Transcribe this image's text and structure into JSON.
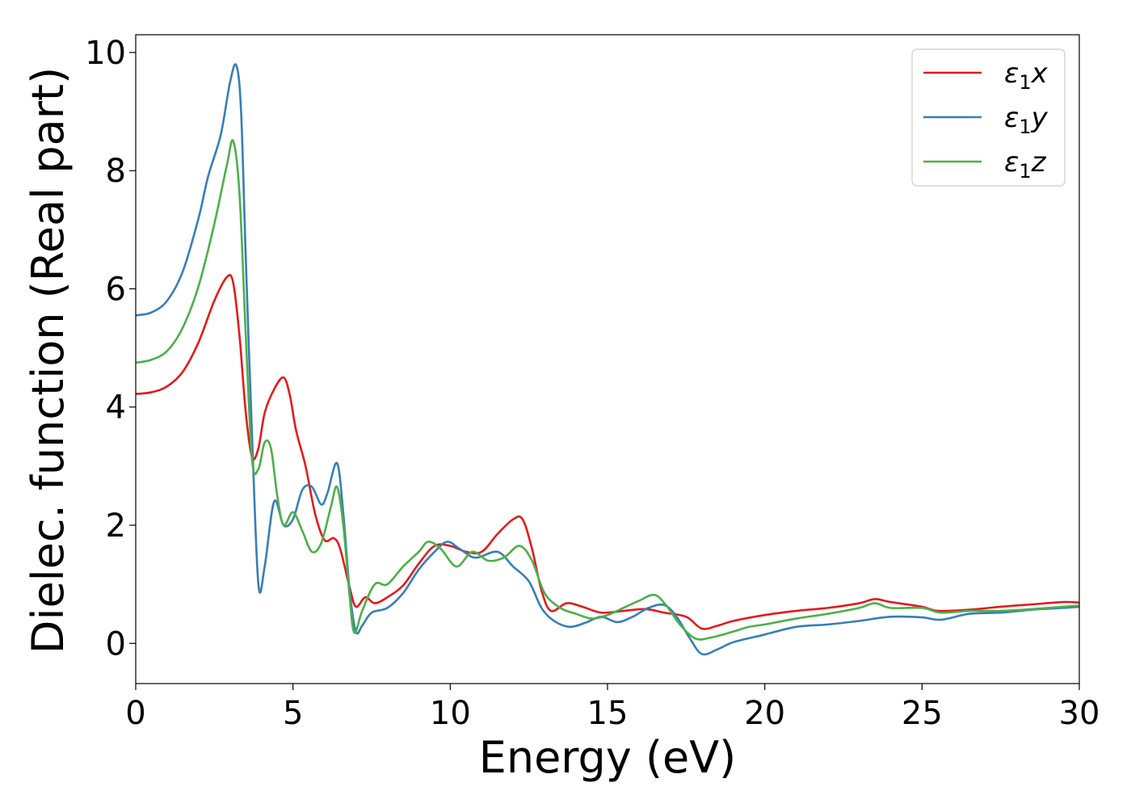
{
  "chart_data": {
    "type": "line",
    "xlabel": "Energy (eV)",
    "ylabel": "Dielec. function (Real part)",
    "xlim": [
      0,
      30
    ],
    "ylim": [
      -0.68,
      10.3
    ],
    "xticks": [
      0,
      5,
      10,
      15,
      20,
      25,
      30
    ],
    "yticks": [
      0,
      2,
      4,
      6,
      8,
      10
    ],
    "grid": false,
    "legend": "top-right",
    "series": [
      {
        "name": "ε1x",
        "label_base": "ε",
        "label_sub": "1",
        "label_var": "x",
        "color": "#e41a1c",
        "points": [
          [
            0,
            4.22
          ],
          [
            0.5,
            4.25
          ],
          [
            1,
            4.35
          ],
          [
            1.5,
            4.6
          ],
          [
            2,
            5.1
          ],
          [
            2.5,
            5.8
          ],
          [
            2.9,
            6.2
          ],
          [
            3.1,
            6.1
          ],
          [
            3.3,
            5.2
          ],
          [
            3.5,
            3.9
          ],
          [
            3.7,
            3.15
          ],
          [
            3.9,
            3.3
          ],
          [
            4.1,
            3.9
          ],
          [
            4.4,
            4.3
          ],
          [
            4.7,
            4.5
          ],
          [
            4.9,
            4.2
          ],
          [
            5.1,
            3.6
          ],
          [
            5.4,
            3.0
          ],
          [
            5.7,
            2.2
          ],
          [
            6.0,
            1.75
          ],
          [
            6.3,
            1.78
          ],
          [
            6.5,
            1.6
          ],
          [
            6.8,
            0.95
          ],
          [
            7.0,
            0.62
          ],
          [
            7.3,
            0.78
          ],
          [
            7.6,
            0.68
          ],
          [
            8.0,
            0.78
          ],
          [
            8.5,
            0.98
          ],
          [
            9.0,
            1.35
          ],
          [
            9.5,
            1.65
          ],
          [
            10.0,
            1.65
          ],
          [
            10.5,
            1.55
          ],
          [
            11.0,
            1.55
          ],
          [
            11.5,
            1.85
          ],
          [
            12.0,
            2.1
          ],
          [
            12.3,
            2.1
          ],
          [
            12.6,
            1.6
          ],
          [
            12.9,
            0.9
          ],
          [
            13.2,
            0.55
          ],
          [
            13.7,
            0.68
          ],
          [
            14.2,
            0.62
          ],
          [
            14.8,
            0.52
          ],
          [
            15.5,
            0.55
          ],
          [
            16.2,
            0.58
          ],
          [
            16.8,
            0.52
          ],
          [
            17.5,
            0.45
          ],
          [
            18.0,
            0.25
          ],
          [
            18.5,
            0.3
          ],
          [
            19.0,
            0.38
          ],
          [
            20.0,
            0.48
          ],
          [
            21.0,
            0.55
          ],
          [
            22.0,
            0.6
          ],
          [
            23.0,
            0.68
          ],
          [
            23.5,
            0.75
          ],
          [
            24.0,
            0.7
          ],
          [
            25.0,
            0.62
          ],
          [
            25.5,
            0.55
          ],
          [
            26.5,
            0.57
          ],
          [
            27.5,
            0.62
          ],
          [
            28.5,
            0.66
          ],
          [
            29.5,
            0.7
          ],
          [
            30,
            0.69
          ]
        ]
      },
      {
        "name": "ε1y",
        "label_base": "ε",
        "label_sub": "1",
        "label_var": "y",
        "color": "#377eb8",
        "points": [
          [
            0,
            5.55
          ],
          [
            0.5,
            5.6
          ],
          [
            1,
            5.8
          ],
          [
            1.5,
            6.3
          ],
          [
            2,
            7.2
          ],
          [
            2.3,
            7.9
          ],
          [
            2.7,
            8.6
          ],
          [
            3.0,
            9.5
          ],
          [
            3.2,
            9.78
          ],
          [
            3.35,
            9.0
          ],
          [
            3.5,
            6.5
          ],
          [
            3.7,
            3.5
          ],
          [
            3.9,
            1.0
          ],
          [
            4.1,
            1.3
          ],
          [
            4.4,
            2.4
          ],
          [
            4.7,
            2.0
          ],
          [
            5.0,
            2.1
          ],
          [
            5.3,
            2.6
          ],
          [
            5.6,
            2.65
          ],
          [
            5.9,
            2.35
          ],
          [
            6.1,
            2.55
          ],
          [
            6.4,
            3.05
          ],
          [
            6.6,
            2.2
          ],
          [
            6.8,
            0.9
          ],
          [
            7.0,
            0.2
          ],
          [
            7.2,
            0.3
          ],
          [
            7.5,
            0.52
          ],
          [
            8.0,
            0.6
          ],
          [
            8.5,
            0.85
          ],
          [
            9.0,
            1.25
          ],
          [
            9.5,
            1.55
          ],
          [
            9.9,
            1.72
          ],
          [
            10.3,
            1.6
          ],
          [
            10.8,
            1.45
          ],
          [
            11.5,
            1.55
          ],
          [
            12.0,
            1.3
          ],
          [
            12.5,
            1.05
          ],
          [
            12.9,
            0.6
          ],
          [
            13.3,
            0.38
          ],
          [
            13.8,
            0.28
          ],
          [
            14.3,
            0.35
          ],
          [
            14.8,
            0.45
          ],
          [
            15.3,
            0.36
          ],
          [
            15.8,
            0.45
          ],
          [
            16.3,
            0.6
          ],
          [
            16.8,
            0.65
          ],
          [
            17.2,
            0.45
          ],
          [
            17.6,
            0.1
          ],
          [
            18.0,
            -0.18
          ],
          [
            18.5,
            -0.1
          ],
          [
            19.0,
            0.02
          ],
          [
            20.0,
            0.15
          ],
          [
            21.0,
            0.28
          ],
          [
            22.0,
            0.32
          ],
          [
            23.0,
            0.38
          ],
          [
            24.0,
            0.45
          ],
          [
            25.0,
            0.44
          ],
          [
            25.6,
            0.4
          ],
          [
            26.5,
            0.5
          ],
          [
            27.5,
            0.52
          ],
          [
            28.5,
            0.57
          ],
          [
            29.5,
            0.6
          ],
          [
            30,
            0.62
          ]
        ]
      },
      {
        "name": "ε1z",
        "label_base": "ε",
        "label_sub": "1",
        "label_var": "z",
        "color": "#4daf4a",
        "points": [
          [
            0,
            4.75
          ],
          [
            0.5,
            4.8
          ],
          [
            1,
            4.95
          ],
          [
            1.5,
            5.35
          ],
          [
            2,
            6.05
          ],
          [
            2.5,
            7.1
          ],
          [
            2.9,
            8.1
          ],
          [
            3.1,
            8.5
          ],
          [
            3.3,
            7.6
          ],
          [
            3.5,
            5.2
          ],
          [
            3.7,
            3.1
          ],
          [
            3.9,
            2.95
          ],
          [
            4.1,
            3.4
          ],
          [
            4.3,
            3.3
          ],
          [
            4.5,
            2.5
          ],
          [
            4.7,
            2.0
          ],
          [
            5.0,
            2.22
          ],
          [
            5.3,
            1.9
          ],
          [
            5.6,
            1.55
          ],
          [
            5.9,
            1.7
          ],
          [
            6.2,
            2.3
          ],
          [
            6.4,
            2.65
          ],
          [
            6.6,
            2.0
          ],
          [
            6.8,
            0.8
          ],
          [
            6.95,
            0.18
          ],
          [
            7.2,
            0.55
          ],
          [
            7.6,
            1.0
          ],
          [
            8.0,
            1.0
          ],
          [
            8.5,
            1.3
          ],
          [
            9.0,
            1.55
          ],
          [
            9.3,
            1.72
          ],
          [
            9.7,
            1.6
          ],
          [
            10.2,
            1.3
          ],
          [
            10.7,
            1.55
          ],
          [
            11.2,
            1.4
          ],
          [
            11.7,
            1.45
          ],
          [
            12.2,
            1.65
          ],
          [
            12.6,
            1.4
          ],
          [
            13.0,
            0.85
          ],
          [
            13.5,
            0.6
          ],
          [
            14.0,
            0.5
          ],
          [
            14.5,
            0.42
          ],
          [
            15.0,
            0.48
          ],
          [
            15.5,
            0.6
          ],
          [
            16.0,
            0.72
          ],
          [
            16.5,
            0.82
          ],
          [
            16.9,
            0.62
          ],
          [
            17.3,
            0.32
          ],
          [
            17.8,
            0.08
          ],
          [
            18.3,
            0.1
          ],
          [
            19.0,
            0.2
          ],
          [
            19.5,
            0.28
          ],
          [
            20.0,
            0.32
          ],
          [
            21.0,
            0.42
          ],
          [
            22.0,
            0.5
          ],
          [
            23.0,
            0.6
          ],
          [
            23.5,
            0.68
          ],
          [
            24.0,
            0.6
          ],
          [
            25.0,
            0.6
          ],
          [
            25.6,
            0.52
          ],
          [
            26.5,
            0.55
          ],
          [
            27.5,
            0.55
          ],
          [
            28.5,
            0.58
          ],
          [
            29.5,
            0.62
          ],
          [
            30,
            0.64
          ]
        ]
      }
    ]
  }
}
